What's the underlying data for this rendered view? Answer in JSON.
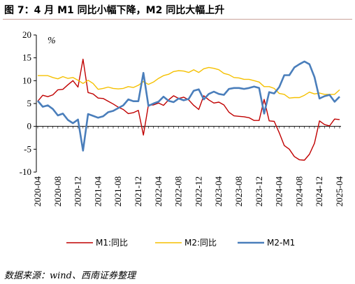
{
  "title": "图 7：4 月 M1 同比小幅下降，M2 同比大幅上升",
  "source": "数据来源：wind、西南证券整理",
  "chart_data": {
    "type": "line",
    "unit": "%",
    "ylim": [
      -10,
      20
    ],
    "yticks": [
      -10,
      -5,
      0,
      5,
      10,
      15,
      20
    ],
    "x_tick_labels": [
      "2020-04",
      "2020-08",
      "2020-12",
      "2021-04",
      "2021-08",
      "2021-12",
      "2022-04",
      "2022-08",
      "2022-12",
      "2023-04",
      "2023-08",
      "2023-12",
      "2024-04",
      "2024-08",
      "2024-12",
      "2025-04"
    ],
    "x": [
      "2020-04",
      "2020-05",
      "2020-06",
      "2020-07",
      "2020-08",
      "2020-09",
      "2020-10",
      "2020-11",
      "2020-12",
      "2021-01",
      "2021-02",
      "2021-03",
      "2021-04",
      "2021-05",
      "2021-06",
      "2021-07",
      "2021-08",
      "2021-09",
      "2021-10",
      "2021-11",
      "2021-12",
      "2022-01",
      "2022-02",
      "2022-03",
      "2022-04",
      "2022-05",
      "2022-06",
      "2022-07",
      "2022-08",
      "2022-09",
      "2022-10",
      "2022-11",
      "2022-12",
      "2023-01",
      "2023-02",
      "2023-03",
      "2023-04",
      "2023-05",
      "2023-06",
      "2023-07",
      "2023-08",
      "2023-09",
      "2023-10",
      "2023-11",
      "2023-12",
      "2024-01",
      "2024-02",
      "2024-03",
      "2024-04",
      "2024-05",
      "2024-06",
      "2024-07",
      "2024-08",
      "2024-09",
      "2024-10",
      "2024-11",
      "2024-12",
      "2025-01",
      "2025-02",
      "2025-03",
      "2025-04"
    ],
    "series": [
      {
        "name": "M1:同比",
        "color": "#c00000",
        "values": [
          5.5,
          6.8,
          6.5,
          6.9,
          8.0,
          8.1,
          9.1,
          10.0,
          8.6,
          14.7,
          7.4,
          7.1,
          6.2,
          6.1,
          5.5,
          4.9,
          4.2,
          3.7,
          2.8,
          3.0,
          3.5,
          -1.9,
          4.7,
          4.7,
          5.1,
          4.6,
          5.8,
          6.7,
          6.1,
          6.4,
          5.8,
          4.6,
          3.7,
          6.7,
          5.8,
          5.1,
          5.3,
          4.7,
          3.1,
          2.3,
          2.2,
          2.1,
          1.9,
          1.3,
          1.3,
          5.9,
          1.2,
          1.1,
          -1.4,
          -4.2,
          -5.0,
          -6.6,
          -7.3,
          -7.4,
          -6.1,
          -3.7,
          1.2,
          0.4,
          0.1,
          1.6,
          1.5
        ]
      },
      {
        "name": "M2:同比",
        "color": "#f5c000",
        "values": [
          11.1,
          11.1,
          11.1,
          10.7,
          10.4,
          10.9,
          10.5,
          10.7,
          10.1,
          9.4,
          10.1,
          9.4,
          8.1,
          8.3,
          8.6,
          8.3,
          8.2,
          8.3,
          8.7,
          8.5,
          9.0,
          9.8,
          9.2,
          9.7,
          10.5,
          11.1,
          11.4,
          12.0,
          12.2,
          12.1,
          11.8,
          12.4,
          11.8,
          12.6,
          12.9,
          12.7,
          12.4,
          11.6,
          11.3,
          10.7,
          10.6,
          10.3,
          10.3,
          10.0,
          9.7,
          8.7,
          8.7,
          8.3,
          7.2,
          7.0,
          6.2,
          6.3,
          6.3,
          6.8,
          7.5,
          7.1,
          7.3,
          7.0,
          7.0,
          7.0,
          8.0
        ]
      },
      {
        "name": "M2-M1",
        "color": "#4a7ebb",
        "values": [
          5.6,
          4.3,
          4.6,
          3.8,
          2.4,
          2.8,
          1.4,
          0.7,
          1.5,
          -5.3,
          2.7,
          2.3,
          1.9,
          2.2,
          3.1,
          3.4,
          4.0,
          4.6,
          5.9,
          5.5,
          5.5,
          11.7,
          4.5,
          5.0,
          5.4,
          6.5,
          5.6,
          5.3,
          6.1,
          5.7,
          6.0,
          7.8,
          8.1,
          5.9,
          7.1,
          7.6,
          7.1,
          6.9,
          8.2,
          8.4,
          8.4,
          8.2,
          8.4,
          8.7,
          8.4,
          2.8,
          7.5,
          7.2,
          8.6,
          11.2,
          11.2,
          12.9,
          13.6,
          14.2,
          13.6,
          10.8,
          6.1,
          6.6,
          6.9,
          5.4,
          6.5
        ]
      }
    ],
    "legend_position": "bottom",
    "grid": false
  }
}
